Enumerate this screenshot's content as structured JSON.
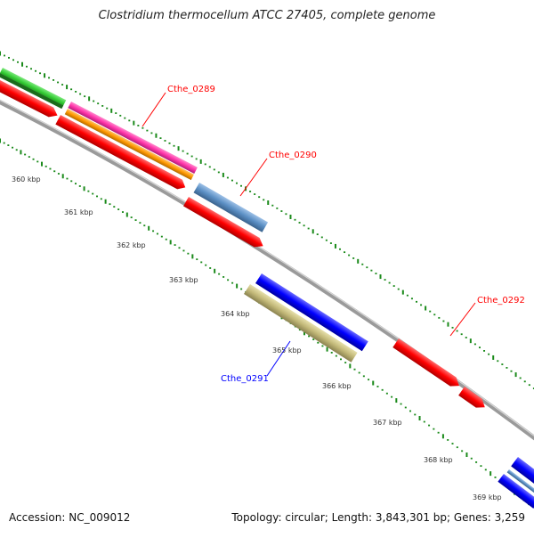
{
  "title": "Clostridium thermocellum ATCC 27405, complete genome",
  "footer": {
    "accession": "Accession: NC_009012",
    "topology": "Topology: circular; Length: 3,843,301 bp; Genes: 3,259"
  },
  "scale_labels": [
    "360 kbp",
    "361 kbp",
    "362 kbp",
    "363 kbp",
    "364 kbp",
    "365 kbp",
    "366 kbp",
    "367 kbp",
    "368 kbp",
    "369 kbp"
  ],
  "gene_labels": [
    {
      "name": "Cthe_0289",
      "color": "#ff0000"
    },
    {
      "name": "Cthe_0290",
      "color": "#ff0000"
    },
    {
      "name": "Cthe_0291",
      "color": "#0000ff"
    },
    {
      "name": "Cthe_0292",
      "color": "#ff0000"
    }
  ],
  "colors": {
    "backbone": "#8c8c8c",
    "tick": "#1a8a1a",
    "red": "#ff0000",
    "green": "#33cc33",
    "pink": "#ff33aa",
    "orange": "#ff9900",
    "steelblue": "#5b8fc4",
    "blue": "#0000ff",
    "khaki": "#c2b878"
  }
}
